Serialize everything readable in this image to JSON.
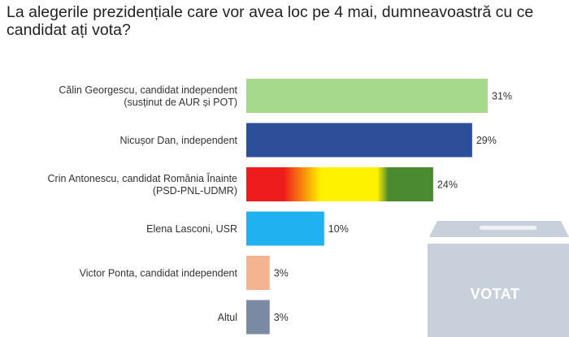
{
  "title": "La alegerile prezidențiale care vor avea loc pe 4 mai, dumneavoastră cu ce candidat ați vota?",
  "ballot_box": {
    "label": "VOTAT",
    "icon": "ballot-box-icon"
  },
  "chart_data": {
    "type": "bar",
    "orientation": "horizontal",
    "title": "La alegerile prezidențiale care vor avea loc pe 4 mai, dumneavoastră cu ce candidat ați vota?",
    "categories": [
      [
        "Călin Georgescu, candidat independent",
        "(susținut de AUR și POT)"
      ],
      [
        "Nicușor Dan, independent"
      ],
      [
        "Crin Antonescu, candidat România Înainte",
        "(PSD-PNL-UDMR)"
      ],
      [
        "Elena Lasconi, USR"
      ],
      [
        "Victor Ponta, candidat independent"
      ],
      [
        "Altul"
      ]
    ],
    "values": [
      31,
      29,
      24,
      10,
      3,
      3
    ],
    "value_labels": [
      "31%",
      "29%",
      "24%",
      "10%",
      "3%",
      "3%"
    ],
    "unit": "%",
    "colors": [
      "#a7d98d",
      "#2d4e99",
      "tricolor",
      "#1fb1f0",
      "#f4b48f",
      "#7b8aa3"
    ],
    "tricolor": [
      "#ee1c1c",
      "#fff200",
      "#4c8a32"
    ],
    "xlim": [
      0,
      31
    ],
    "grid": false,
    "legend": "none"
  }
}
